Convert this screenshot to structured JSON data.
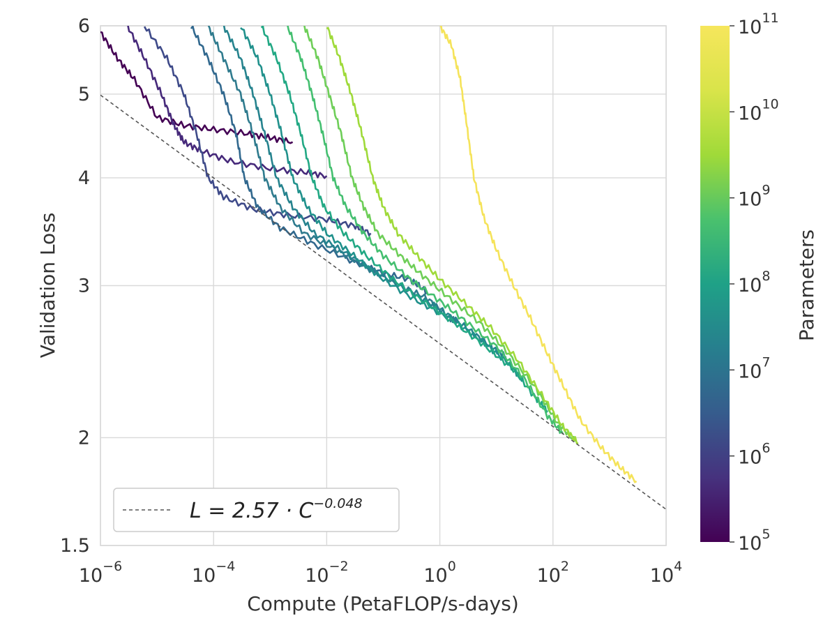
{
  "chart_data": {
    "type": "line",
    "title": "",
    "xlabel": "Compute (PetaFLOP/s-days)",
    "ylabel": "Validation Loss",
    "x_scale": "log",
    "y_scale": "log",
    "xlim": [
      1e-06,
      10000.0
    ],
    "ylim": [
      1.5,
      6
    ],
    "x_ticks": [
      {
        "base": "10",
        "exp": "−6"
      },
      {
        "base": "10",
        "exp": "−4"
      },
      {
        "base": "10",
        "exp": "−2"
      },
      {
        "base": "10",
        "exp": "0"
      },
      {
        "base": "10",
        "exp": "2"
      },
      {
        "base": "10",
        "exp": "4"
      }
    ],
    "y_ticks": [
      "1.5",
      "2",
      "3",
      "4",
      "5",
      "6"
    ],
    "grid": true,
    "colorbar": {
      "label": "Parameters",
      "scale": "log",
      "range": [
        100000.0,
        100000000000.0
      ],
      "colormap": "viridis",
      "ticks": [
        {
          "base": "10",
          "exp": "5"
        },
        {
          "base": "10",
          "exp": "6"
        },
        {
          "base": "10",
          "exp": "7"
        },
        {
          "base": "10",
          "exp": "8"
        },
        {
          "base": "10",
          "exp": "9"
        },
        {
          "base": "10",
          "exp": "10"
        },
        {
          "base": "10",
          "exp": "11"
        }
      ]
    },
    "fit_line": {
      "a": 2.57,
      "b": -0.048,
      "style": "dashed",
      "color": "#555555"
    },
    "legend": {
      "label_lhs": "L = 2.57 · C",
      "label_exp": "−0.048",
      "placement": "lower-left"
    },
    "series": [
      {
        "params": 150000.0,
        "color": "#440154",
        "points": [
          [
            1e-06,
            5.9
          ],
          [
            2e-06,
            5.5
          ],
          [
            4e-06,
            5.2
          ],
          [
            1e-05,
            4.7
          ],
          [
            3e-05,
            4.6
          ],
          [
            0.0001,
            4.55
          ],
          [
            0.0004,
            4.5
          ],
          [
            0.001,
            4.45
          ],
          [
            0.0025,
            4.4
          ]
        ]
      },
      {
        "params": 400000.0,
        "color": "#46297a",
        "points": [
          [
            3e-06,
            6.0
          ],
          [
            6e-06,
            5.5
          ],
          [
            1.2e-05,
            5.0
          ],
          [
            2e-05,
            4.6
          ],
          [
            3e-05,
            4.4
          ],
          [
            6e-05,
            4.3
          ],
          [
            0.0002,
            4.18
          ],
          [
            0.001,
            4.1
          ],
          [
            0.004,
            4.06
          ],
          [
            0.01,
            4.02
          ]
        ]
      },
      {
        "params": 1500000.0,
        "color": "#3e4a89",
        "points": [
          [
            6e-06,
            6.0
          ],
          [
            1.5e-05,
            5.5
          ],
          [
            3e-05,
            5.0
          ],
          [
            5e-05,
            4.5
          ],
          [
            8e-05,
            4.0
          ],
          [
            0.00015,
            3.8
          ],
          [
            0.0005,
            3.68
          ],
          [
            0.002,
            3.62
          ],
          [
            0.01,
            3.58
          ],
          [
            0.03,
            3.52
          ],
          [
            0.06,
            3.45
          ]
        ]
      },
      {
        "params": 5000000.0,
        "color": "#31688e",
        "points": [
          [
            4e-05,
            6.0
          ],
          [
            8e-05,
            5.5
          ],
          [
            0.00015,
            5.0
          ],
          [
            0.00025,
            4.5
          ],
          [
            0.00035,
            4.0
          ],
          [
            0.0006,
            3.7
          ],
          [
            0.0015,
            3.5
          ],
          [
            0.006,
            3.35
          ],
          [
            0.03,
            3.2
          ],
          [
            0.1,
            3.1
          ],
          [
            0.3,
            3.05
          ],
          [
            0.6,
            2.95
          ]
        ]
      },
      {
        "params": 15000000.0,
        "color": "#2f7b8e",
        "points": [
          [
            8e-05,
            6.0
          ],
          [
            0.00015,
            5.5
          ],
          [
            0.0003,
            5.0
          ],
          [
            0.0005,
            4.5
          ],
          [
            0.0008,
            4.0
          ],
          [
            0.0015,
            3.7
          ],
          [
            0.004,
            3.45
          ],
          [
            0.015,
            3.3
          ],
          [
            0.05,
            3.15
          ],
          [
            0.2,
            3.0
          ],
          [
            0.6,
            2.9
          ],
          [
            1.5,
            2.75
          ],
          [
            2.0,
            2.73
          ]
        ]
      },
      {
        "params": 40000000.0,
        "color": "#26838e",
        "points": [
          [
            0.00015,
            6.0
          ],
          [
            0.0003,
            5.5
          ],
          [
            0.0005,
            5.0
          ],
          [
            0.0008,
            4.5
          ],
          [
            0.0013,
            4.0
          ],
          [
            0.0025,
            3.7
          ],
          [
            0.006,
            3.45
          ],
          [
            0.02,
            3.28
          ],
          [
            0.08,
            3.1
          ],
          [
            0.3,
            2.95
          ],
          [
            1.0,
            2.82
          ],
          [
            3.0,
            2.68
          ],
          [
            8.0,
            2.55
          ],
          [
            15.0,
            2.48
          ]
        ]
      },
      {
        "params": 100000000.0,
        "color": "#21918c",
        "points": [
          [
            0.0003,
            6.0
          ],
          [
            0.0006,
            5.5
          ],
          [
            0.001,
            5.0
          ],
          [
            0.0016,
            4.5
          ],
          [
            0.0025,
            4.0
          ],
          [
            0.0045,
            3.7
          ],
          [
            0.01,
            3.45
          ],
          [
            0.03,
            3.25
          ],
          [
            0.1,
            3.05
          ],
          [
            0.4,
            2.88
          ],
          [
            1.5,
            2.75
          ],
          [
            5.0,
            2.6
          ],
          [
            15.0,
            2.45
          ],
          [
            30.0,
            2.33
          ]
        ]
      },
      {
        "params": 300000000.0,
        "color": "#22a884",
        "points": [
          [
            0.0007,
            6.0
          ],
          [
            0.0013,
            5.5
          ],
          [
            0.0022,
            5.0
          ],
          [
            0.0035,
            4.5
          ],
          [
            0.0055,
            4.0
          ],
          [
            0.009,
            3.7
          ],
          [
            0.02,
            3.45
          ],
          [
            0.05,
            3.25
          ],
          [
            0.15,
            3.05
          ],
          [
            0.5,
            2.88
          ],
          [
            1.8,
            2.72
          ],
          [
            6.0,
            2.56
          ],
          [
            20.0,
            2.4
          ],
          [
            50.0,
            2.22
          ],
          [
            80.0,
            2.15
          ]
        ]
      },
      {
        "params": 800000000.0,
        "color": "#44bf70",
        "points": [
          [
            0.002,
            6.0
          ],
          [
            0.0035,
            5.5
          ],
          [
            0.0055,
            5.0
          ],
          [
            0.0085,
            4.5
          ],
          [
            0.013,
            4.0
          ],
          [
            0.022,
            3.7
          ],
          [
            0.045,
            3.45
          ],
          [
            0.1,
            3.25
          ],
          [
            0.3,
            3.05
          ],
          [
            1.0,
            2.88
          ],
          [
            3.0,
            2.72
          ],
          [
            10.0,
            2.55
          ],
          [
            30.0,
            2.35
          ],
          [
            80.0,
            2.12
          ],
          [
            150.0,
            2.02
          ]
        ]
      },
      {
        "params": 2000000000.0,
        "color": "#6ece58",
        "points": [
          [
            0.004,
            6.0
          ],
          [
            0.007,
            5.5
          ],
          [
            0.011,
            5.0
          ],
          [
            0.018,
            4.5
          ],
          [
            0.028,
            4.0
          ],
          [
            0.045,
            3.7
          ],
          [
            0.08,
            3.45
          ],
          [
            0.2,
            3.25
          ],
          [
            0.5,
            3.08
          ],
          [
            1.5,
            2.9
          ],
          [
            5.0,
            2.72
          ],
          [
            15.0,
            2.52
          ],
          [
            50.0,
            2.28
          ],
          [
            120.0,
            2.08
          ],
          [
            250.0,
            1.98
          ]
        ]
      },
      {
        "params": 6000000000.0,
        "color": "#9fda3a",
        "points": [
          [
            0.01,
            6.0
          ],
          [
            0.017,
            5.5
          ],
          [
            0.027,
            5.0
          ],
          [
            0.042,
            4.5
          ],
          [
            0.065,
            4.0
          ],
          [
            0.1,
            3.7
          ],
          [
            0.18,
            3.45
          ],
          [
            0.4,
            3.25
          ],
          [
            1.0,
            3.05
          ],
          [
            3.0,
            2.85
          ],
          [
            8.0,
            2.68
          ],
          [
            25.0,
            2.45
          ],
          [
            70.0,
            2.22
          ],
          [
            150.0,
            2.06
          ],
          [
            280.0,
            1.97
          ]
        ]
      },
      {
        "params": 175000000000.0,
        "color": "#f5e35a",
        "points": [
          [
            1.0,
            6.0
          ],
          [
            1.6,
            5.7
          ],
          [
            2.3,
            5.2
          ],
          [
            3.0,
            4.6
          ],
          [
            4.0,
            4.0
          ],
          [
            6.0,
            3.6
          ],
          [
            10.0,
            3.3
          ],
          [
            20.0,
            3.0
          ],
          [
            40.0,
            2.75
          ],
          [
            80.0,
            2.5
          ],
          [
            150.0,
            2.3
          ],
          [
            300.0,
            2.1
          ],
          [
            700.0,
            1.95
          ],
          [
            1500.0,
            1.85
          ],
          [
            3000.0,
            1.78
          ]
        ]
      }
    ]
  }
}
